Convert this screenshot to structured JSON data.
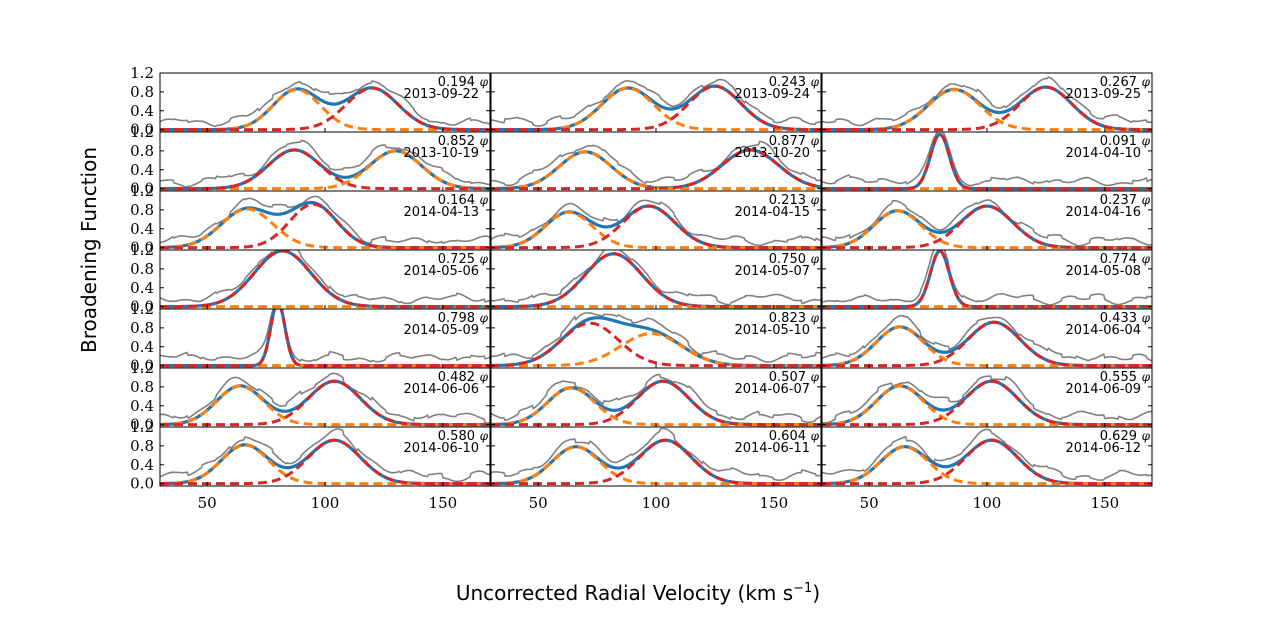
{
  "chart_data": {
    "type": "line",
    "xlabel": "Uncorrected Radial Velocity (km s",
    "xlabel_sup": "−1",
    "xlabel_close": ")",
    "ylabel": "Broadening Function",
    "xlim": [
      30,
      170
    ],
    "ylim": [
      -0.05,
      1.2
    ],
    "x_ticks": [
      50,
      100,
      150
    ],
    "y_ticks": [
      0.0,
      0.4,
      0.8,
      1.2
    ],
    "x_tick_labels": [
      "50",
      "100",
      "150"
    ],
    "y_tick_labels": [
      "0.0",
      "0.4",
      "0.8",
      "1.2"
    ],
    "phi_symbol": "φ",
    "colors": {
      "observed": "#808080",
      "total_fit": "#1f77b4",
      "secondary": "#ff7f0e",
      "primary": "#d62728"
    },
    "grid": false,
    "panels": [
      {
        "phase": "0.194",
        "date": "2013-09-22",
        "c1": [
          88,
          0.85,
          10
        ],
        "c2": [
          120,
          0.88,
          11
        ],
        "sec_first": true
      },
      {
        "phase": "0.243",
        "date": "2013-09-24",
        "c1": [
          88,
          0.88,
          11
        ],
        "c2": [
          125,
          0.92,
          11
        ],
        "sec_first": true
      },
      {
        "phase": "0.267",
        "date": "2013-09-25",
        "c1": [
          86,
          0.85,
          11
        ],
        "c2": [
          125,
          0.9,
          11
        ],
        "sec_first": true
      },
      {
        "phase": "0.852",
        "date": "2013-10-19",
        "c1": [
          87,
          0.82,
          11
        ],
        "c2": [
          130,
          0.8,
          11
        ],
        "sec_first": false
      },
      {
        "phase": "0.877",
        "date": "2013-10-20",
        "c1": [
          70,
          0.78,
          11
        ],
        "c2": [
          140,
          0.82,
          12
        ],
        "sec_first": true
      },
      {
        "phase": "0.091",
        "date": "2014-04-10",
        "c1": [
          80,
          1.15,
          4
        ],
        "c2": [
          80,
          0.0,
          4
        ],
        "sec_first": false
      },
      {
        "phase": "0.164",
        "date": "2014-04-13",
        "c1": [
          67,
          0.82,
          11
        ],
        "c2": [
          95,
          0.92,
          10
        ],
        "sec_first": true
      },
      {
        "phase": "0.213",
        "date": "2014-04-15",
        "c1": [
          63,
          0.75,
          10
        ],
        "c2": [
          97,
          0.88,
          11
        ],
        "sec_first": true
      },
      {
        "phase": "0.237",
        "date": "2014-04-16",
        "c1": [
          62,
          0.78,
          10
        ],
        "c2": [
          100,
          0.88,
          11
        ],
        "sec_first": true
      },
      {
        "phase": "0.725",
        "date": "2014-05-06",
        "c1": [
          82,
          1.18,
          12
        ],
        "c2": [
          82,
          0.0,
          12
        ],
        "sec_first": false
      },
      {
        "phase": "0.750",
        "date": "2014-05-07",
        "c1": [
          82,
          1.12,
          12
        ],
        "c2": [
          82,
          0.0,
          12
        ],
        "sec_first": false
      },
      {
        "phase": "0.774",
        "date": "2014-05-08",
        "c1": [
          80,
          1.18,
          4
        ],
        "c2": [
          80,
          0.0,
          4
        ],
        "sec_first": false
      },
      {
        "phase": "0.798",
        "date": "2014-05-09",
        "c1": [
          80,
          1.35,
          3
        ],
        "c2": [
          80,
          0.0,
          3
        ],
        "sec_first": false
      },
      {
        "phase": "0.823",
        "date": "2014-05-10",
        "c1": [
          72,
          0.9,
          12
        ],
        "c2": [
          98,
          0.68,
          13
        ],
        "sec_first": false
      },
      {
        "phase": "0.433",
        "date": "2014-06-04",
        "c1": [
          63,
          0.82,
          10
        ],
        "c2": [
          103,
          0.92,
          11
        ],
        "sec_first": true
      },
      {
        "phase": "0.482",
        "date": "2014-06-06",
        "c1": [
          64,
          0.82,
          10
        ],
        "c2": [
          104,
          0.92,
          11
        ],
        "sec_first": true
      },
      {
        "phase": "0.507",
        "date": "2014-06-07",
        "c1": [
          64,
          0.78,
          10
        ],
        "c2": [
          103,
          0.92,
          11
        ],
        "sec_first": true
      },
      {
        "phase": "0.555",
        "date": "2014-06-09",
        "c1": [
          63,
          0.82,
          10
        ],
        "c2": [
          102,
          0.92,
          11
        ],
        "sec_first": true
      },
      {
        "phase": "0.580",
        "date": "2014-06-10",
        "c1": [
          66,
          0.82,
          10
        ],
        "c2": [
          104,
          0.92,
          11
        ],
        "sec_first": true
      },
      {
        "phase": "0.604",
        "date": "2014-06-11",
        "c1": [
          66,
          0.78,
          10
        ],
        "c2": [
          104,
          0.92,
          11
        ],
        "sec_first": true
      },
      {
        "phase": "0.629",
        "date": "2014-06-12",
        "c1": [
          65,
          0.78,
          10
        ],
        "c2": [
          102,
          0.92,
          11
        ],
        "sec_first": true
      }
    ]
  }
}
